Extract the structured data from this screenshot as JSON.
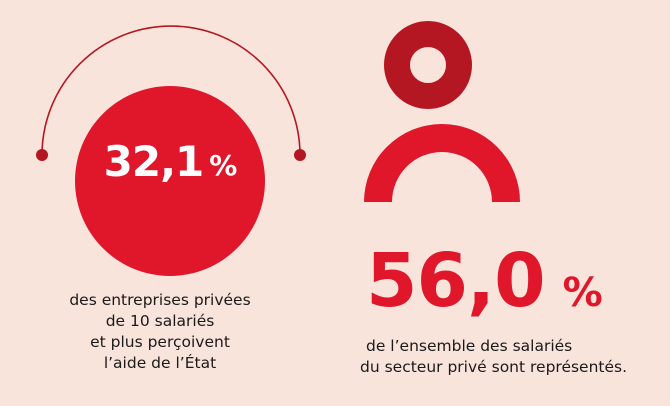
{
  "colors": {
    "background": "#f9e4dc",
    "accent_red": "#e0162b",
    "dark_red": "#b51722",
    "text": "#1a1a1a"
  },
  "left_stat": {
    "value": "32,1",
    "unit": "%",
    "caption_lines": [
      "des entreprises privées",
      "de 10 salariés",
      "et plus perçoivent",
      "l’aide de l’État"
    ]
  },
  "right_stat": {
    "icon": "person-icon",
    "value": "56,0",
    "unit": "%",
    "caption_lines": [
      "de l’ensemble des salariés",
      "du secteur privé sont représentés."
    ]
  }
}
